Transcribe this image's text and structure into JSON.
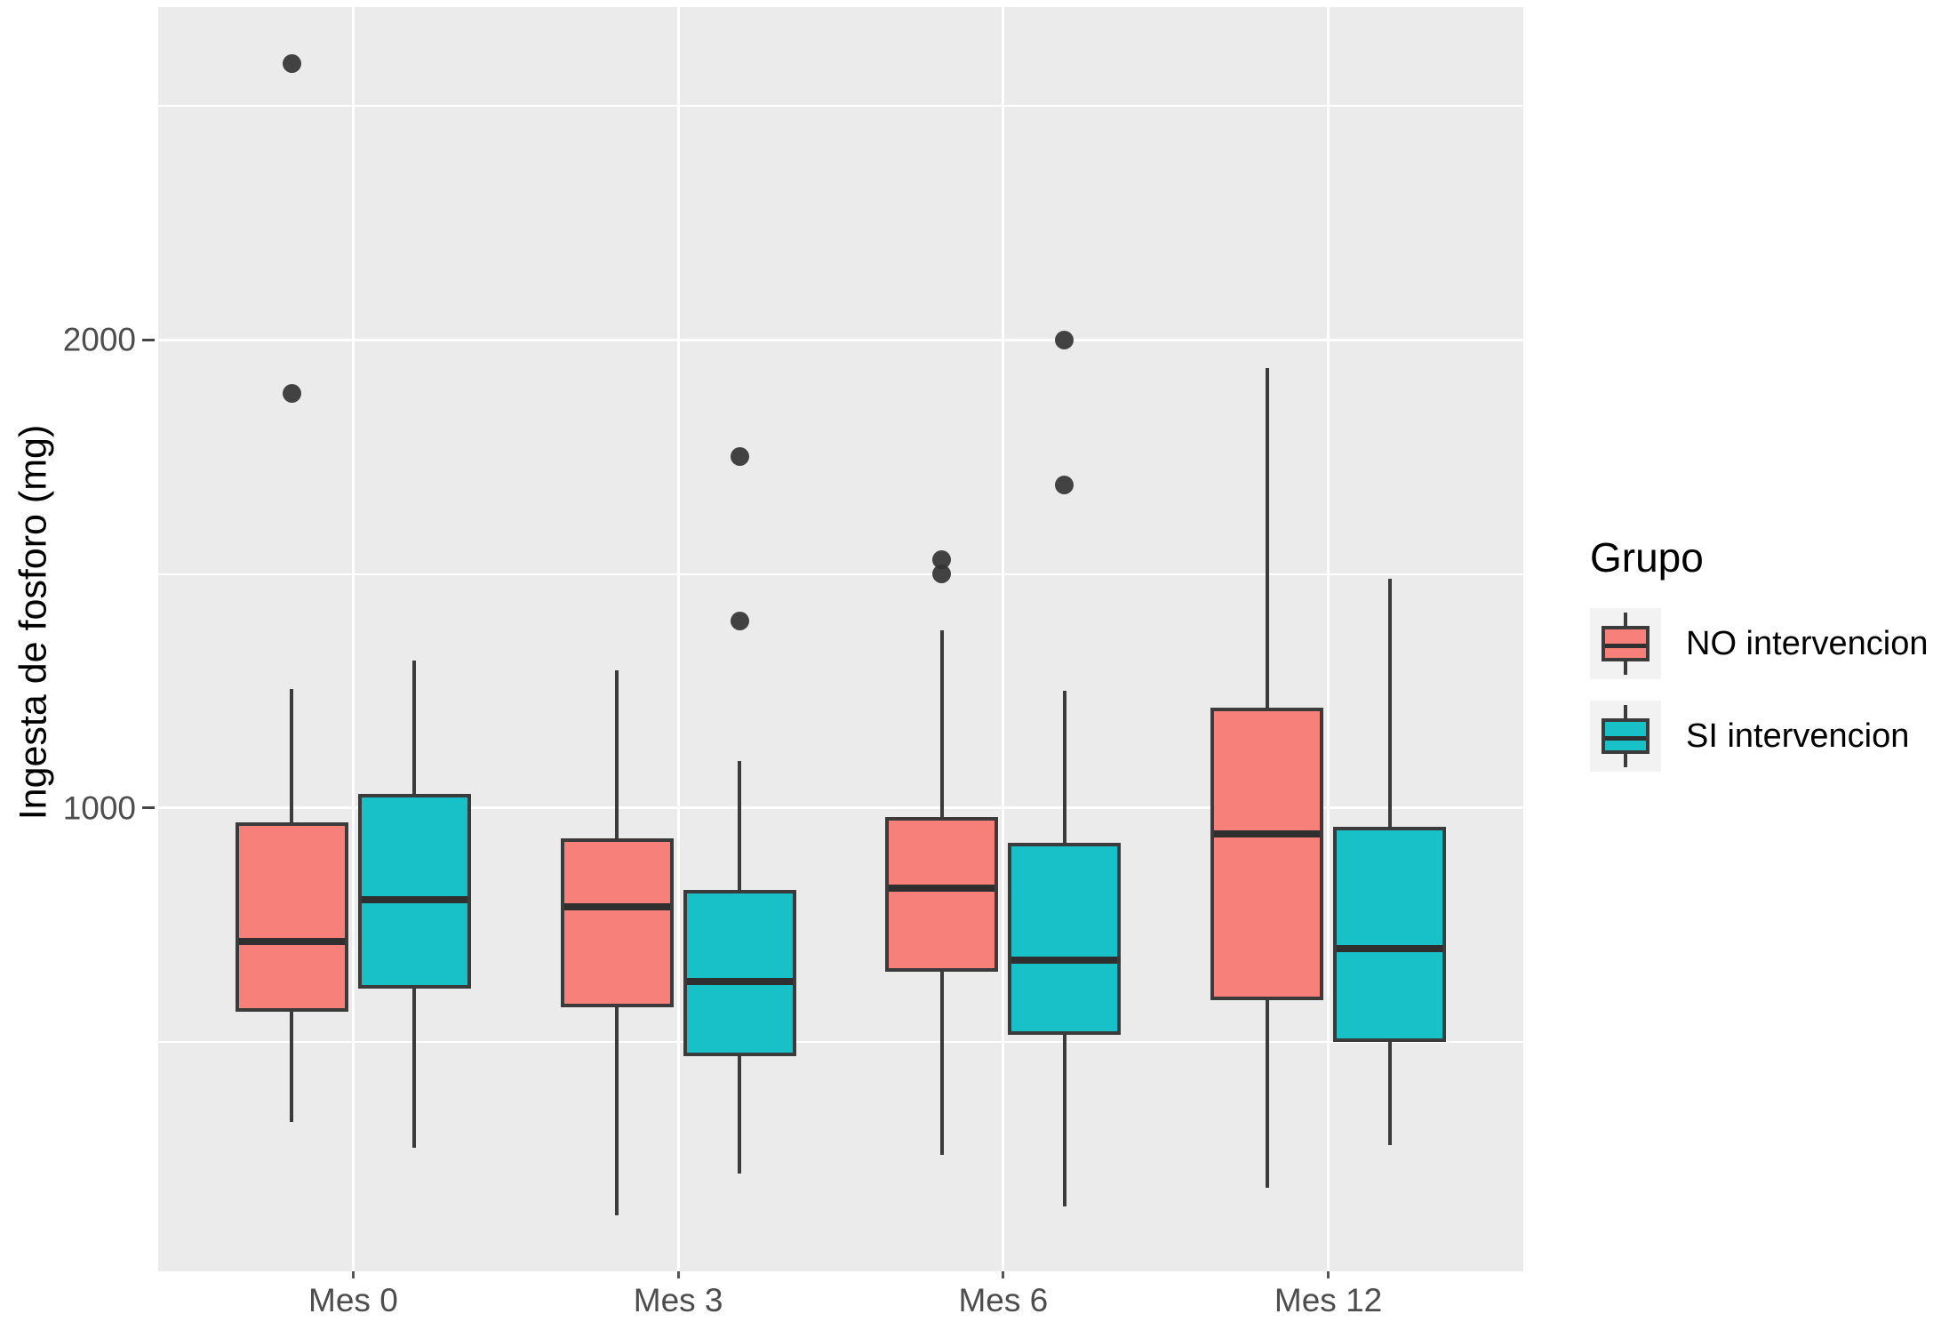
{
  "chart_data": {
    "type": "boxplot",
    "title": "",
    "xlabel": "",
    "ylabel": "Ingesta de fosforo (mg)",
    "categories": [
      "Mes 0",
      "Mes 3",
      "Mes 6",
      "Mes 12"
    ],
    "y_axis": {
      "major_ticks": [
        1000,
        2000
      ],
      "tick_labels": [
        "1000",
        "2000"
      ],
      "minor_gridlines": [
        500,
        1500,
        2500
      ],
      "ylim": [
        11,
        2710
      ]
    },
    "legend": {
      "title": "Grupo",
      "position": "right"
    },
    "colors": {
      "no_intervencion": "#F7807A",
      "si_intervencion": "#17C1C7",
      "box_outline": "#3B3B3B",
      "outlier": "#333333",
      "panel_background": "#EBEBEB",
      "gridline": "#FFFFFF",
      "axis_text": "#4D4D4D"
    },
    "series": [
      {
        "name": "NO intervencion",
        "color": "#F7807A",
        "boxes": [
          {
            "category": "Mes 0",
            "whisker_low": 330,
            "q1": 565,
            "median": 715,
            "q3": 970,
            "whisker_high": 1255,
            "outliers": [
              1885,
              2590
            ]
          },
          {
            "category": "Mes 3",
            "whisker_low": 130,
            "q1": 575,
            "median": 790,
            "q3": 935,
            "whisker_high": 1295,
            "outliers": []
          },
          {
            "category": "Mes 6",
            "whisker_low": 260,
            "q1": 650,
            "median": 830,
            "q3": 980,
            "whisker_high": 1380,
            "outliers": [
              1500,
              1530
            ]
          },
          {
            "category": "Mes 12",
            "whisker_low": 190,
            "q1": 590,
            "median": 945,
            "q3": 1215,
            "whisker_high": 1940,
            "outliers": []
          }
        ]
      },
      {
        "name": "SI intervencion",
        "color": "#17C1C7",
        "boxes": [
          {
            "category": "Mes 0",
            "whisker_low": 275,
            "q1": 615,
            "median": 805,
            "q3": 1030,
            "whisker_high": 1315,
            "outliers": []
          },
          {
            "category": "Mes 3",
            "whisker_low": 220,
            "q1": 470,
            "median": 630,
            "q3": 825,
            "whisker_high": 1100,
            "outliers": [
              1400,
              1750
            ]
          },
          {
            "category": "Mes 6",
            "whisker_low": 150,
            "q1": 515,
            "median": 675,
            "q3": 925,
            "whisker_high": 1250,
            "outliers": [
              1690,
              2000
            ]
          },
          {
            "category": "Mes 12",
            "whisker_low": 280,
            "q1": 500,
            "median": 700,
            "q3": 960,
            "whisker_high": 1490,
            "outliers": []
          }
        ]
      }
    ]
  }
}
